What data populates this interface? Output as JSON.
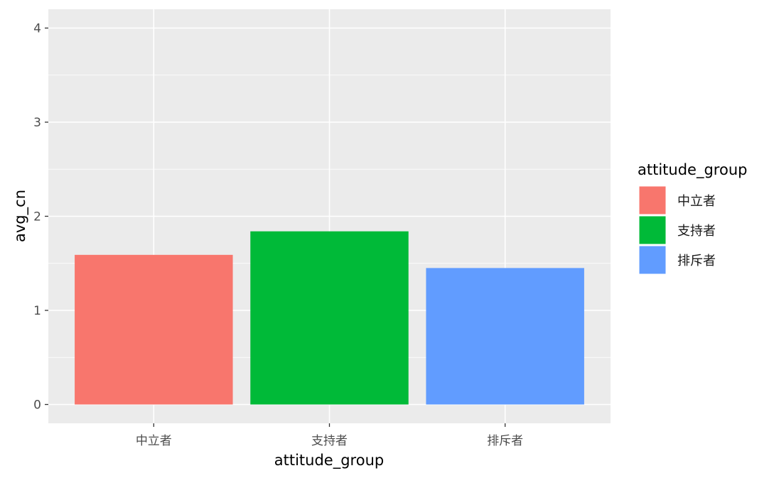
{
  "chart_data": {
    "type": "bar",
    "categories": [
      "中立者",
      "支持者",
      "排斥者"
    ],
    "values": [
      1.59,
      1.84,
      1.45
    ],
    "colors": [
      "#F8766D",
      "#00BA38",
      "#619CFF"
    ],
    "xlabel": "attitude_group",
    "ylabel": "avg_cn",
    "ylim": [
      -0.2,
      4.2
    ],
    "yticks": [
      0,
      1,
      2,
      3,
      4
    ],
    "grid": true,
    "background": "#EBEBEB",
    "legend": {
      "title": "attitude_group",
      "placement": "right",
      "entries": [
        "中立者",
        "支持者",
        "排斥者"
      ]
    }
  }
}
